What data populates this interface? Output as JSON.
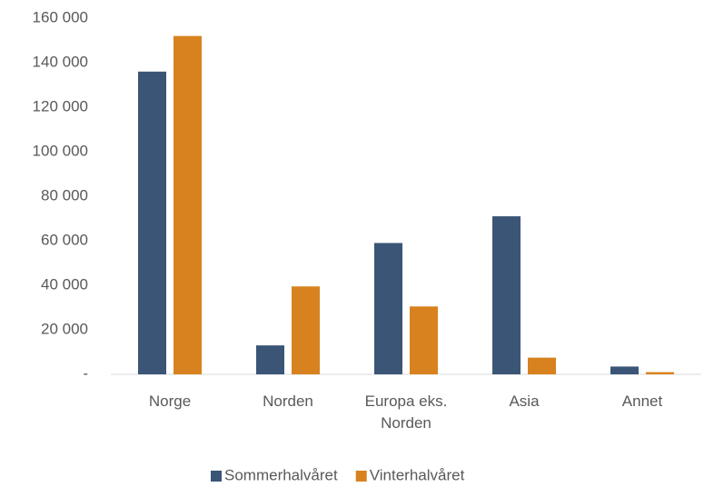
{
  "chart_data": {
    "type": "bar",
    "categories": [
      "Norge",
      "Norden",
      "Europa eks. Norden",
      "Asia",
      "Annet"
    ],
    "series": [
      {
        "name": "Sommerhalvåret",
        "color": "#3b5577",
        "values": [
          136000,
          13000,
          59000,
          71000,
          3500
        ]
      },
      {
        "name": "Vinterhalvåret",
        "color": "#d8821f",
        "values": [
          152000,
          39500,
          30500,
          7500,
          1000
        ]
      }
    ],
    "ylim": [
      0,
      160000
    ],
    "yticks": [
      {
        "value": 0,
        "label": "-"
      },
      {
        "value": 20000,
        "label": "20 000"
      },
      {
        "value": 40000,
        "label": "40 000"
      },
      {
        "value": 60000,
        "label": "60 000"
      },
      {
        "value": 80000,
        "label": "80 000"
      },
      {
        "value": 100000,
        "label": "100 000"
      },
      {
        "value": 120000,
        "label": "120 000"
      },
      {
        "value": 140000,
        "label": "140 000"
      },
      {
        "value": 160000,
        "label": "160 000"
      }
    ],
    "grid": false,
    "legend": "bottom"
  }
}
